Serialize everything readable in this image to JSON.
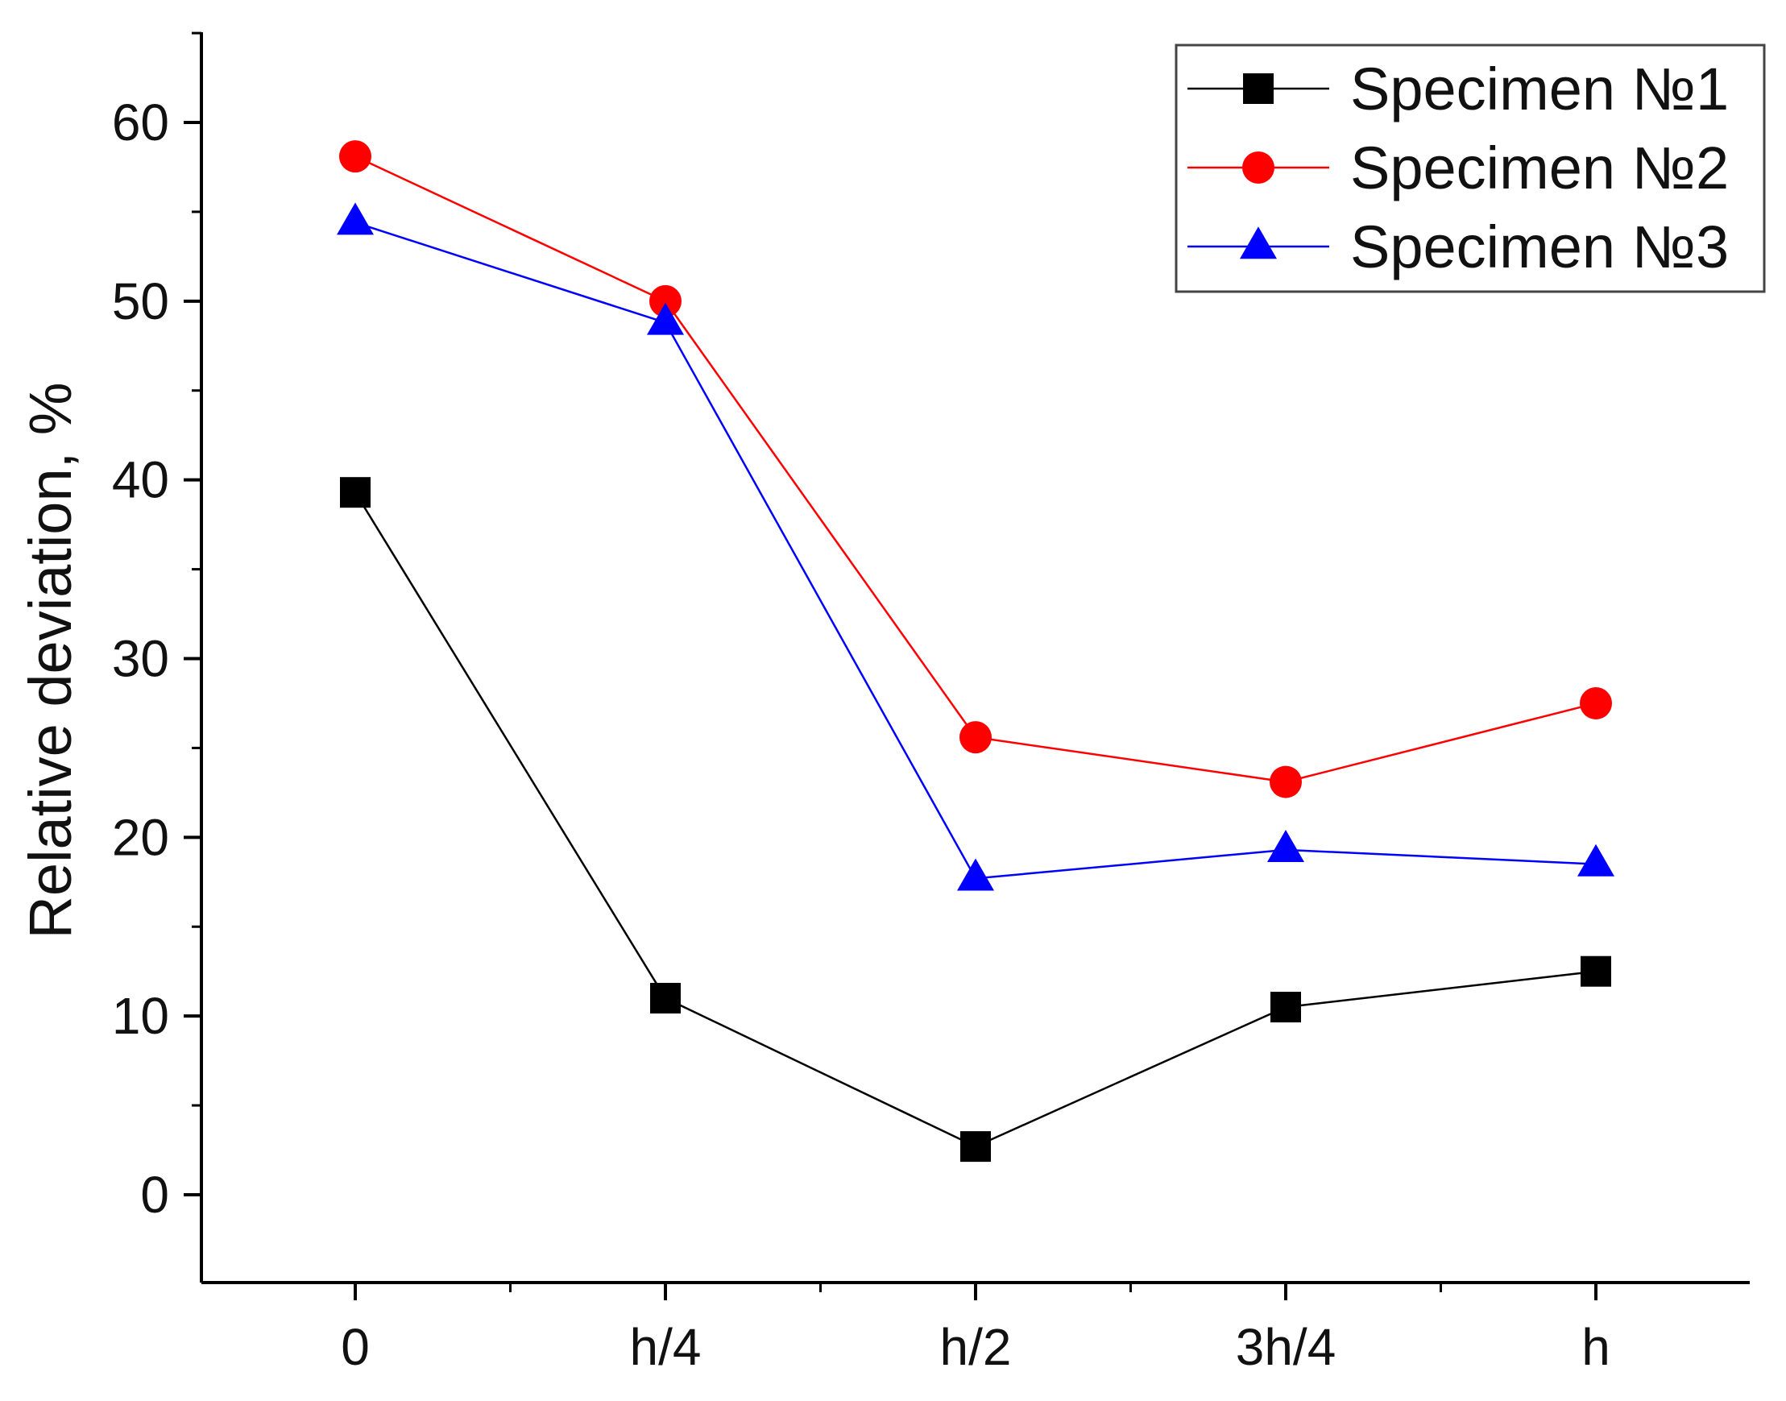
{
  "chart_data": {
    "type": "line",
    "title": "",
    "xlabel": "",
    "ylabel": "Relative deviation, %",
    "categories": [
      "0",
      "h/4",
      "h/2",
      "3h/4",
      "h"
    ],
    "ylim": [
      -5,
      65
    ],
    "yticks": [
      0,
      10,
      20,
      30,
      40,
      50,
      60
    ],
    "yticks_labels": [
      "0",
      "10",
      "20",
      "30",
      "40",
      "50",
      "60"
    ],
    "grid": false,
    "legend_position": "top-right",
    "series": [
      {
        "name": "Specimen №1",
        "color": "#000000",
        "marker": "square",
        "values": [
          39.3,
          11.0,
          2.7,
          10.5,
          12.5
        ]
      },
      {
        "name": "Specimen №2",
        "color": "#ff0000",
        "marker": "circle",
        "values": [
          58.1,
          50.0,
          25.6,
          23.1,
          27.5
        ]
      },
      {
        "name": "Specimen №3",
        "color": "#0000ff",
        "marker": "triangle",
        "values": [
          54.4,
          48.8,
          17.7,
          19.3,
          18.5
        ]
      }
    ]
  }
}
